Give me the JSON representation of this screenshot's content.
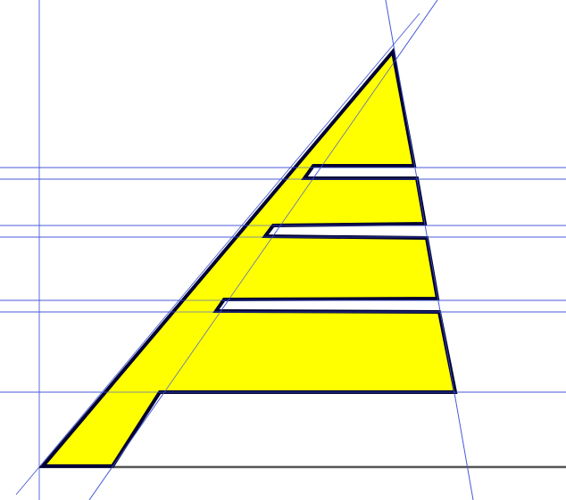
{
  "figure": {
    "shape_fill": "#ffff00",
    "shape_stroke": "#000033",
    "guide_line_color": "#4a5bd9",
    "baseline_color": "#555555",
    "background": "#ffffff"
  }
}
